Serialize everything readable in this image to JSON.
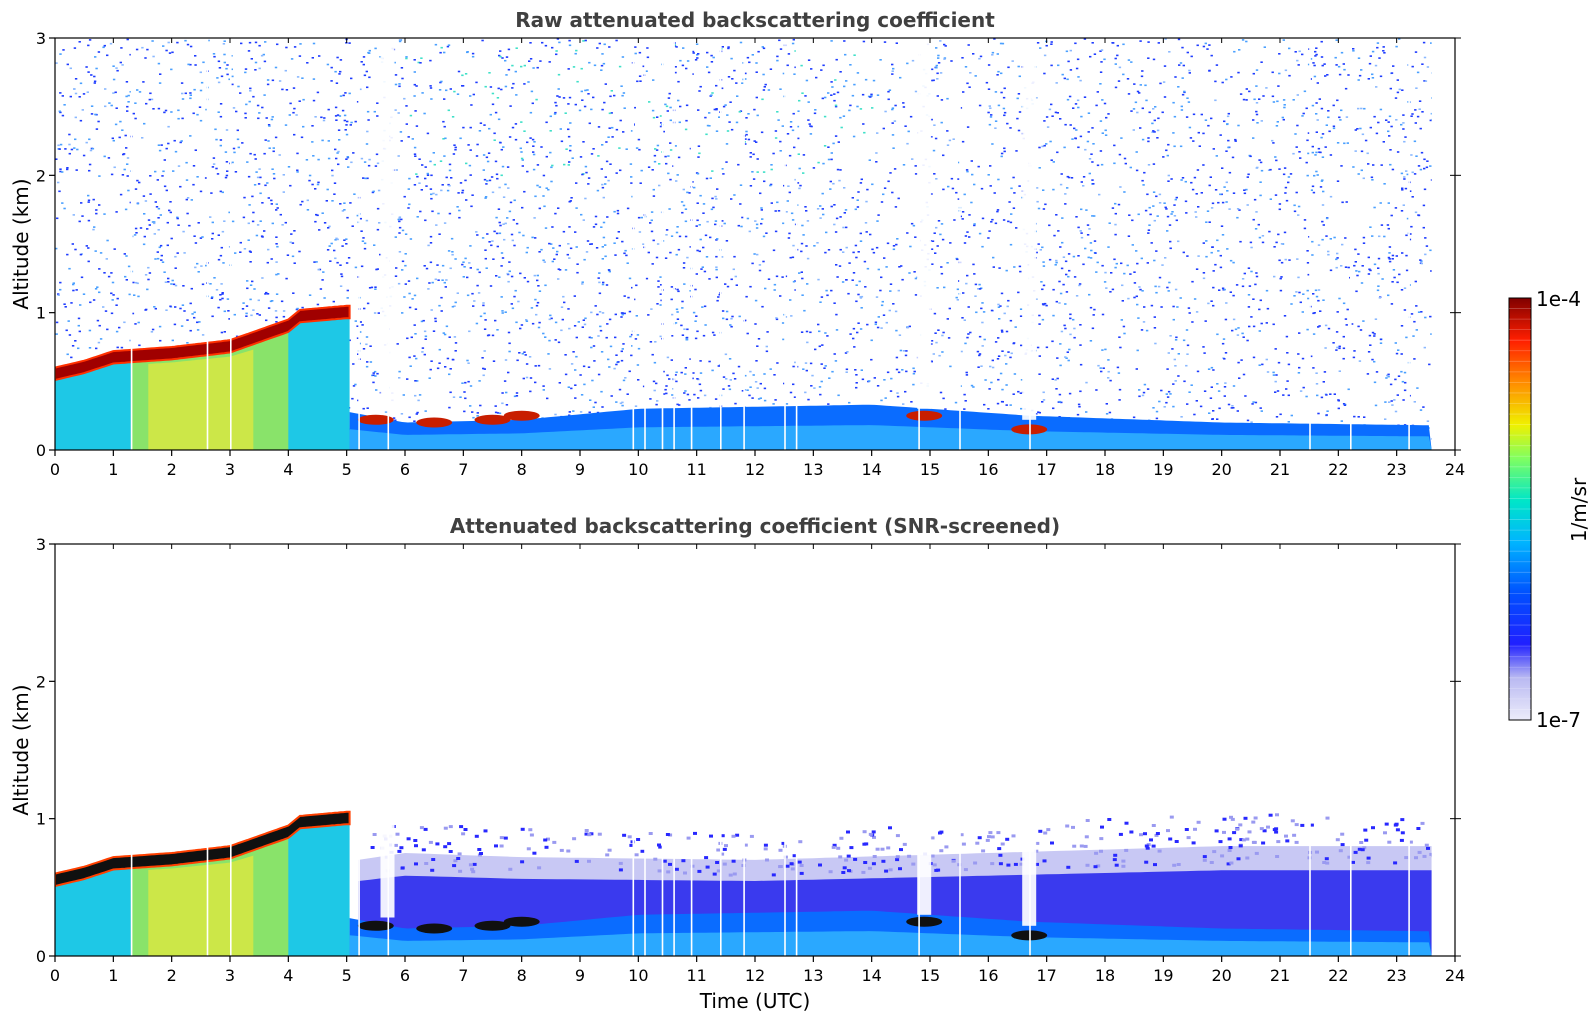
{
  "chart_data": [
    {
      "type": "heatmap",
      "title": "Raw attenuated backscattering coefficient",
      "xlabel": "",
      "ylabel": "Altitude (km)",
      "xlim": [
        0,
        24
      ],
      "ylim": [
        0,
        3
      ],
      "xticks": [
        "0",
        "1",
        "2",
        "3",
        "4",
        "5",
        "6",
        "7",
        "8",
        "9",
        "10",
        "11",
        "12",
        "13",
        "14",
        "15",
        "16",
        "17",
        "18",
        "19",
        "20",
        "21",
        "22",
        "23",
        "24"
      ],
      "yticks": [
        "0",
        "1",
        "2",
        "3"
      ],
      "features": {
        "data_end_hour": 23.6,
        "noise_floor_top_km": 3.0,
        "layer_top": [
          [
            0,
            0.6
          ],
          [
            0.5,
            0.65
          ],
          [
            1,
            0.72
          ],
          [
            2,
            0.75
          ],
          [
            3,
            0.8
          ],
          [
            4,
            0.95
          ],
          [
            4.2,
            1.02
          ],
          [
            5,
            1.05
          ]
        ],
        "surface_layer_top": [
          [
            5,
            0.28
          ],
          [
            6,
            0.2
          ],
          [
            8,
            0.22
          ],
          [
            10,
            0.3
          ],
          [
            14,
            0.33
          ],
          [
            16.7,
            0.25
          ],
          [
            20,
            0.2
          ],
          [
            23.6,
            0.18
          ]
        ],
        "strong_echo_spots": [
          [
            5.5,
            0.22
          ],
          [
            6.5,
            0.2
          ],
          [
            7.5,
            0.22
          ],
          [
            8.0,
            0.25
          ],
          [
            14.9,
            0.25
          ],
          [
            16.7,
            0.15
          ]
        ],
        "gaps_hours": [
          1.3,
          2.6,
          3.0,
          5.2,
          5.7,
          9.9,
          10.1,
          10.4,
          10.6,
          10.9,
          11.4,
          11.8,
          12.5,
          12.7,
          14.8,
          15.5,
          16.7,
          21.5,
          22.2,
          23.2
        ]
      }
    },
    {
      "type": "heatmap",
      "title": "Attenuated backscattering coefficient (SNR-screened)",
      "xlabel": "Time (UTC)",
      "ylabel": "Altitude (km)",
      "xlim": [
        0,
        24
      ],
      "ylim": [
        0,
        3
      ],
      "xticks": [
        "0",
        "1",
        "2",
        "3",
        "4",
        "5",
        "6",
        "7",
        "8",
        "9",
        "10",
        "11",
        "12",
        "13",
        "14",
        "15",
        "16",
        "17",
        "18",
        "19",
        "20",
        "21",
        "22",
        "23",
        "24"
      ],
      "yticks": [
        "0",
        "1",
        "2",
        "3"
      ],
      "features": {
        "screened_top": [
          [
            5.2,
            0.7
          ],
          [
            6,
            0.75
          ],
          [
            8,
            0.72
          ],
          [
            12,
            0.7
          ],
          [
            16,
            0.75
          ],
          [
            20,
            0.8
          ],
          [
            23.6,
            0.8
          ]
        ]
      }
    }
  ],
  "colorbar": {
    "max_label": "1e-4",
    "min_label": "1e-7",
    "unit_label": "1/m/sr",
    "scale": "log",
    "colormap": [
      "#e6e6fa",
      "#0000ff",
      "#00c8ff",
      "#00ff80",
      "#ffff00",
      "#ff8000",
      "#ff0000",
      "#800000"
    ]
  }
}
